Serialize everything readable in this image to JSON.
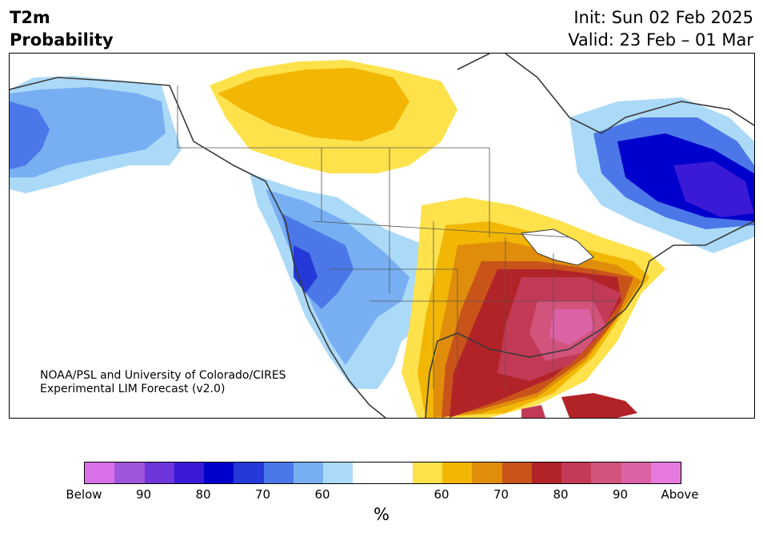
{
  "header": {
    "title_line1": "T2m",
    "title_line2": "Probability",
    "init": "Init: Sun 02 Feb 2025",
    "valid": "Valid: 23 Feb – 01 Mar"
  },
  "credit": {
    "line1": "NOAA/PSL and University of Colorado/CIRES",
    "line2": "Experimental LIM Forecast (v2.0)"
  },
  "colorbar": {
    "colors": [
      "#da70e8",
      "#9f55dd",
      "#6c36da",
      "#3a1ad6",
      "#0000cd",
      "#2538d8",
      "#4c77e8",
      "#77aff2",
      "#abdaf8",
      "#ffffff",
      "#ffffff",
      "#fee24c",
      "#f2b705",
      "#e08d0b",
      "#c8541a",
      "#b22328",
      "#c23a55",
      "#d2537c",
      "#db62a5",
      "#e579dd"
    ],
    "tick_labels": [
      "Below",
      "90",
      "80",
      "70",
      "60",
      "60",
      "70",
      "80",
      "90",
      "Above"
    ],
    "unit": "%"
  }
}
